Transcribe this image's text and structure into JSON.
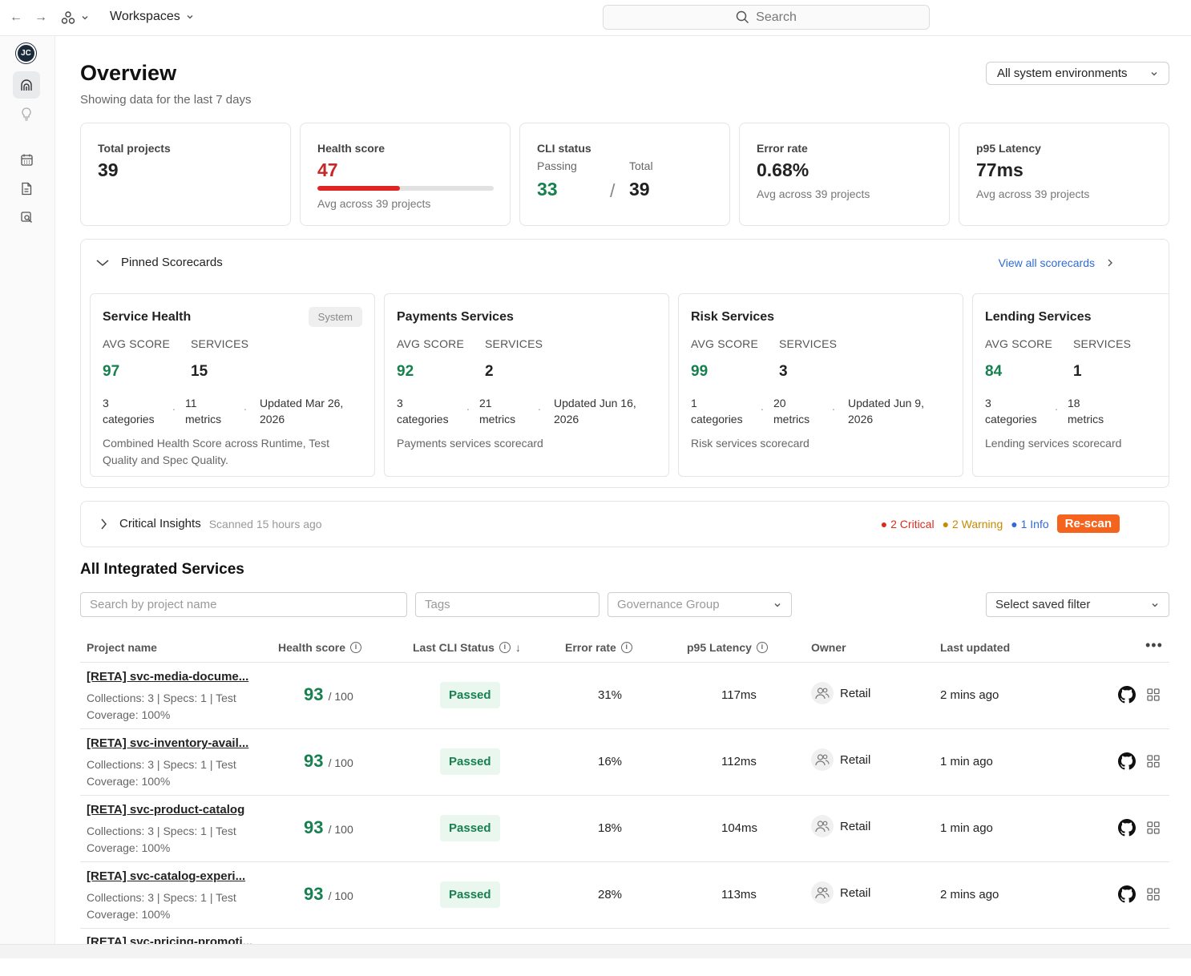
{
  "topbar": {
    "workspace_label": "Workspaces",
    "search_placeholder": "Search"
  },
  "sidebar": {
    "avatar_initials": "JC",
    "icons": [
      "home-dashboard-icon",
      "lightbulb-icon",
      "calendar-icon",
      "document-icon",
      "search-document-icon"
    ]
  },
  "header": {
    "title": "Overview",
    "subtitle": "Showing data for the last 7 days",
    "env_select": "All system environments"
  },
  "metrics": {
    "total_projects": {
      "label": "Total projects",
      "value": "39"
    },
    "health_score": {
      "label": "Health score",
      "value": "47",
      "sub": "Avg across 39 projects",
      "fill": 0.47
    },
    "cli_status": {
      "label": "CLI status",
      "passing_label": "Passing",
      "total_label": "Total",
      "passing": "33",
      "sep": "/",
      "total": "39"
    },
    "error_rate": {
      "label": "Error rate",
      "value": "0.68%",
      "sub": "Avg across 39 projects"
    },
    "p95_latency": {
      "label": "p95 Latency",
      "value": "77ms",
      "sub": "Avg across 39 projects"
    }
  },
  "pinned": {
    "title": "Pinned Scorecards",
    "view_all": "View all scorecards",
    "avg_label": "AVG SCORE",
    "services_label": "SERVICES",
    "cards": [
      {
        "title": "Service Health",
        "badge": "System",
        "avg": "97",
        "services": "15",
        "cat_n": "3",
        "cat_l": "categories",
        "met_n": "11",
        "met_l": "metrics",
        "updated": "Updated Mar 26, 2026",
        "desc": "Combined Health Score across Runtime, Test Quality and Spec Quality."
      },
      {
        "title": "Payments Services",
        "badge": "",
        "avg": "92",
        "services": "2",
        "cat_n": "3",
        "cat_l": "categories",
        "met_n": "21",
        "met_l": "metrics",
        "updated": "Updated Jun 16, 2026",
        "desc": "Payments services scorecard"
      },
      {
        "title": "Risk Services",
        "badge": "",
        "avg": "99",
        "services": "3",
        "cat_n": "1",
        "cat_l": "categories",
        "met_n": "20",
        "met_l": "metrics",
        "updated": "Updated Jun 9, 2026",
        "desc": "Risk services scorecard"
      },
      {
        "title": "Lending Services",
        "badge": "",
        "avg": "84",
        "services": "1",
        "cat_n": "3",
        "cat_l": "categories",
        "met_n": "18",
        "met_l": "metrics",
        "updated": "",
        "desc": "Lending services scorecard"
      }
    ]
  },
  "insights": {
    "title": "Critical Insights",
    "scanned": "Scanned 15 hours ago",
    "critical": "2 Critical",
    "warning": "2 Warning",
    "info": "1 Info",
    "rescan": "Re-scan"
  },
  "services": {
    "title": "All Integrated Services",
    "search_placeholder": "Search by project name",
    "tags_placeholder": "Tags",
    "group_placeholder": "Governance Group",
    "saved_filter": "Select saved filter",
    "columns": {
      "project": "Project name",
      "health": "Health score",
      "cli": "Last CLI Status",
      "error": "Error rate",
      "latency": "p95 Latency",
      "owner": "Owner",
      "updated": "Last updated"
    },
    "rows": [
      {
        "name": "[RETA] svc-media-docume...",
        "meta": "Collections: 3 | Specs: 1 | Test Coverage: 100%",
        "score": "93",
        "max": "/ 100",
        "status": "Passed",
        "error": "31%",
        "latency": "117ms",
        "owner": "Retail",
        "updated": "2 mins ago"
      },
      {
        "name": "[RETA] svc-inventory-avail...",
        "meta": "Collections: 3 | Specs: 1 | Test Coverage: 100%",
        "score": "93",
        "max": "/ 100",
        "status": "Passed",
        "error": "16%",
        "latency": "112ms",
        "owner": "Retail",
        "updated": "1 min ago"
      },
      {
        "name": "[RETA] svc-product-catalog",
        "meta": "Collections: 3 | Specs: 1 | Test Coverage: 100%",
        "score": "93",
        "max": "/ 100",
        "status": "Passed",
        "error": "18%",
        "latency": "104ms",
        "owner": "Retail",
        "updated": "1 min ago"
      },
      {
        "name": "[RETA] svc-catalog-experi...",
        "meta": "Collections: 3 | Specs: 1 | Test Coverage: 100%",
        "score": "93",
        "max": "/ 100",
        "status": "Passed",
        "error": "28%",
        "latency": "113ms",
        "owner": "Retail",
        "updated": "2 mins ago"
      }
    ],
    "partial_row_name": "[RETA] svc-pricing-promoti..."
  }
}
